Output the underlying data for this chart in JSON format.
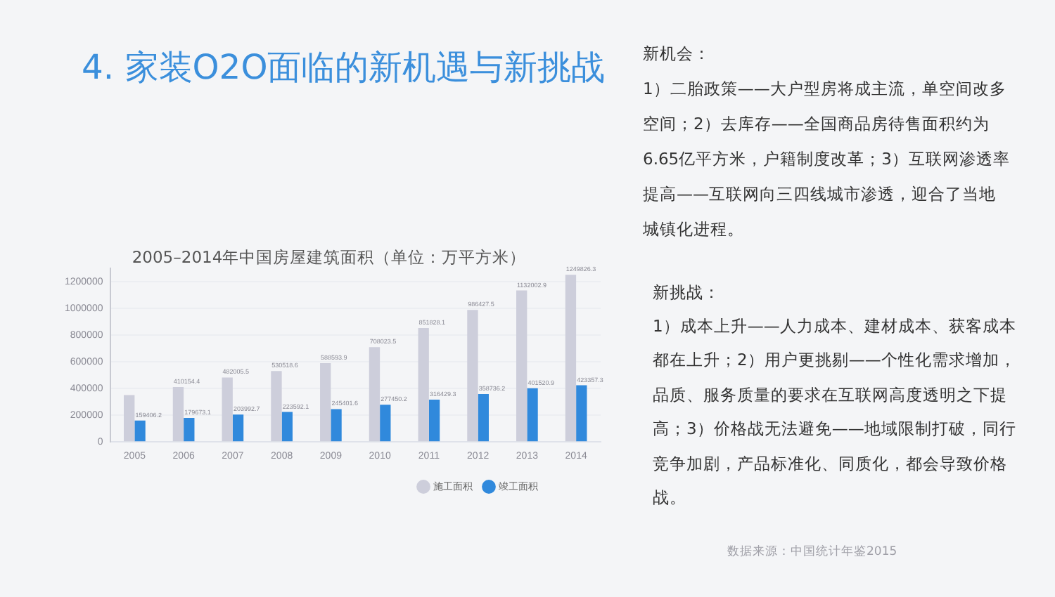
{
  "chart_data": {
    "type": "bar",
    "title": "4. 家装O2O面临的新机遇与新挑战",
    "subtitle": "2005–2014年中国房屋建筑面积（单位：万平方米）",
    "categories": [
      "2005",
      "2006",
      "2007",
      "2008",
      "2009",
      "2010",
      "2011",
      "2012",
      "2013",
      "2014"
    ],
    "series": [
      {
        "name": "施工面积",
        "color": "#cdcedb",
        "values": [
          350000,
          410154.4,
          482005.5,
          530518.6,
          588593.9,
          708023.5,
          851828.1,
          986427.5,
          1132002.9,
          1249826.3
        ],
        "value_labels": [
          null,
          "410154.4",
          "482005.5",
          "530518.6",
          "588593.9",
          "708023.5",
          "851828.1",
          "986427.5",
          "1132002.9",
          "1249826.3"
        ]
      },
      {
        "name": "竣工面积",
        "color": "#3089dc",
        "values": [
          159406.2,
          179673.1,
          203992.7,
          223592.1,
          245401.6,
          277450.2,
          316429.3,
          358736.2,
          401520.9,
          423357.3
        ],
        "value_labels": [
          "159406.2",
          "179673.1",
          "203992.7",
          "223592.1",
          "245401.6",
          "277450.2",
          "316429.3",
          "358736.2",
          "401520.9",
          "423357.3"
        ]
      }
    ],
    "ylim": [
      0,
      1300000
    ],
    "yticks": [
      0,
      200000,
      400000,
      600000,
      800000,
      1000000,
      1200000
    ],
    "grid": "y",
    "legend": "bottom",
    "annotations": [
      "新机会：",
      "1）二胎政策——大户型房将成主流，单空间改多空间；2）去库存——全国商品房待售面积约为6.65亿平方米，户籍制度改革；3）互联网渗透率提高——互联网向三四线城市渗透，迎合了当地城镇化进程。",
      "新挑战：",
      "1）成本上升——人力成本、建材成本、获客成本都在上升；2）用户更挑剔——个性化需求增加，品质、服务质量的要求在互联网高度透明之下提高；3）价格战无法避免——地域限制打破，同行竞争加剧，产品标准化、同质化，都会导致价格战。",
      "数据来源：中国统计年鉴2015"
    ]
  }
}
